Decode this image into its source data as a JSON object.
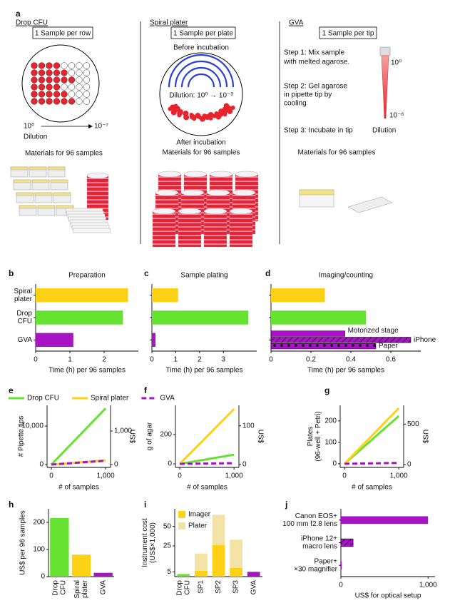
{
  "panel_a": {
    "label": "a",
    "drop_cfu": {
      "title": "Drop CFU",
      "box": "1 Sample per row",
      "dilution_start": "10⁰",
      "dilution_end": "10⁻⁷",
      "dilution": "Dilution",
      "materials": "Materials for 96 samples"
    },
    "spiral": {
      "title": "Spiral plater",
      "box": "1 Sample per plate",
      "before": "Before incubation",
      "dilution": "Dilution: 10⁰ → 10⁻³",
      "after": "After incubation",
      "materials": "Materials for 96 samples"
    },
    "gva": {
      "title": "GVA",
      "box": "1 Sample per tip",
      "step1": [
        "Step 1: Mix sample",
        "with melted agarose."
      ],
      "step2": [
        "Step 2: Gel agarose",
        "in pipette tip by",
        "cooling"
      ],
      "step3": "Step 3: Incubate in tip",
      "tip_top": "10⁰",
      "tip_bottom": "10⁻⁶",
      "dilution": "Dilution",
      "materials": "Materials for 96 samples"
    }
  },
  "chart_data": [
    {
      "panel": "b",
      "type": "bar",
      "orientation": "horizontal",
      "title": "Preparation",
      "categories": [
        [
          "Spiral",
          "plater"
        ],
        [
          "Drop",
          "CFU"
        ],
        "GVA"
      ],
      "values": [
        2.7,
        2.55,
        1.1
      ],
      "colors": [
        "#fcd116",
        "#66e330",
        "#a614c4"
      ],
      "xlim": [
        0,
        3
      ],
      "xticks": [
        0,
        1,
        2
      ],
      "xlabel": "Time (h) per 96 samples"
    },
    {
      "panel": "c",
      "type": "bar",
      "orientation": "horizontal",
      "title": "Sample plating",
      "categories": [
        null,
        null,
        null
      ],
      "values": [
        1.1,
        4.05,
        0.15
      ],
      "colors": [
        "#fcd116",
        "#66e330",
        "#a614c4"
      ],
      "xlim": [
        0,
        4.4
      ],
      "xticks": [
        0,
        1,
        2,
        3
      ],
      "xlabel": "Time (h) per 96 samples"
    },
    {
      "panel": "d",
      "type": "bar",
      "orientation": "horizontal",
      "title": "Imaging/counting",
      "categories": [
        null,
        null,
        null
      ],
      "values": [
        0.27,
        0.475,
        null
      ],
      "colors": [
        "#fcd116",
        "#66e330",
        "#a614c4"
      ],
      "sub_bars": [
        {
          "name": "Motorized stage",
          "value": 0.37
        },
        {
          "name": "iPhone",
          "value": 0.7,
          "hatch": "diagonal"
        },
        {
          "name": "Paper",
          "value": 0.525,
          "hatch": "dots"
        }
      ],
      "xlim": [
        0,
        0.75
      ],
      "xticks": [
        0,
        0.2,
        0.4,
        0.6
      ],
      "xlabel": "Time (h) per 96 samples"
    },
    {
      "panel": "e",
      "type": "line",
      "x": [
        0,
        1000
      ],
      "legend": "top",
      "series": [
        {
          "name": "Drop CFU",
          "color": "#66e330",
          "values": [
            0,
            14600
          ]
        },
        {
          "name": "Spiral plater",
          "color": "#fcd116",
          "values": [
            0,
            1100
          ]
        },
        {
          "name": "GVA",
          "color": "#a614c4",
          "values": [
            0,
            1000
          ],
          "dashed": true
        }
      ],
      "xlim": [
        -80,
        1090
      ],
      "xticks": [
        0,
        {
          "value": 1000,
          "label": "1,000"
        }
      ],
      "xlabel": "# of samples",
      "ylim": [
        -740,
        15370
      ],
      "yticks": [
        0,
        {
          "value": 10000,
          "label": "10,000"
        }
      ],
      "ylabel": "# Pipette tips",
      "y2lim": [
        -85,
        1766
      ],
      "y2ticks": [
        0,
        {
          "value": 1000,
          "label": "1,000"
        }
      ],
      "y2label": "US$"
    },
    {
      "panel": "f",
      "type": "line",
      "x": [
        0,
        1000
      ],
      "series": [
        {
          "color": "#66e330",
          "values": [
            0,
            63
          ]
        },
        {
          "color": "#fcd116",
          "values": [
            0,
            375
          ]
        },
        {
          "color": "#a614c4",
          "values": [
            0,
            5
          ],
          "dashed": true
        }
      ],
      "xlim": [
        -80,
        1090
      ],
      "xticks": [
        0,
        {
          "value": 1000,
          "label": "1,000"
        }
      ],
      "xlabel": "# of samples",
      "ylim": [
        -24,
        400
      ],
      "yticks": [
        0,
        200
      ],
      "ylabel": "g of agar",
      "y2lim": [
        -7.4,
        153
      ],
      "y2ticks": [
        0,
        100
      ],
      "y2label": "US$"
    },
    {
      "panel": "g",
      "type": "line",
      "x": [
        0,
        1000
      ],
      "series": [
        {
          "color": "#66e330",
          "values": [
            0,
            223
          ]
        },
        {
          "color": "#fcd116",
          "values": [
            0,
            260
          ]
        },
        {
          "color": "#a614c4",
          "values": [
            0,
            4
          ],
          "dashed": true
        }
      ],
      "xlim": [
        -80,
        1090
      ],
      "xticks": [
        0,
        {
          "value": 1000,
          "label": "1,000"
        }
      ],
      "xlabel": "# of samples",
      "ylim": [
        -17,
        273
      ],
      "yticks": [
        0,
        100,
        200
      ],
      "ylabel": [
        "Plates",
        "(96-well + Petri)"
      ],
      "y2lim": [
        -36,
        732
      ],
      "y2ticks": [
        0,
        500
      ],
      "y2label": "US$"
    },
    {
      "panel": "h",
      "type": "bar",
      "orientation": "vertical",
      "categories": [
        [
          "Drop",
          "CFU"
        ],
        [
          "Spiral",
          "plater"
        ],
        "GVA"
      ],
      "values": [
        216,
        81,
        14
      ],
      "colors": [
        "#66e330",
        "#fcd116",
        "#a614c4"
      ],
      "ylim": [
        0,
        250
      ],
      "yticks": [
        0,
        100,
        200
      ],
      "ylabel": "US$ per 96 samples"
    },
    {
      "panel": "i",
      "type": "bar",
      "orientation": "vertical",
      "stacked": true,
      "yscale": "sqrt",
      "legend": "upper left",
      "categories": [
        [
          "Drop",
          "CFU"
        ],
        "SP1",
        "SP2",
        "SP3",
        "GVA"
      ],
      "series": [
        {
          "name": "Imager",
          "color": "#fcd116",
          "colors": [
            "#66e330",
            "#fcd116",
            "#fcd116",
            "#fcd116",
            "#a614c4"
          ],
          "values": [
            4,
            5.5,
            26,
            7,
            5
          ]
        },
        {
          "name": "Plater",
          "color": "#f3e3a6",
          "values": [
            0,
            12,
            43,
            25,
            0
          ]
        }
      ],
      "ylim": [
        3,
        80
      ],
      "yticks": [
        5,
        25,
        50
      ],
      "ylabel": [
        "Instrument cost",
        "(US$×1,000)"
      ]
    },
    {
      "panel": "j",
      "type": "bar",
      "orientation": "horizontal",
      "categories": [
        [
          "Canon EOS+",
          "100 mm f2.8 lens"
        ],
        [
          "iPhone 12+",
          "macro lens"
        ],
        [
          "Paper+",
          "×30 magnifier"
        ]
      ],
      "values": [
        1000,
        140,
        10
      ],
      "colors": [
        "#a614c4",
        "#a614c4",
        "#a614c4"
      ],
      "hatch": [
        false,
        true,
        false
      ],
      "xlim": [
        0,
        1080
      ],
      "xticks": [
        0,
        {
          "value": 1000,
          "label": "1,000"
        }
      ],
      "xlabel": "US$ for optical setup"
    }
  ]
}
